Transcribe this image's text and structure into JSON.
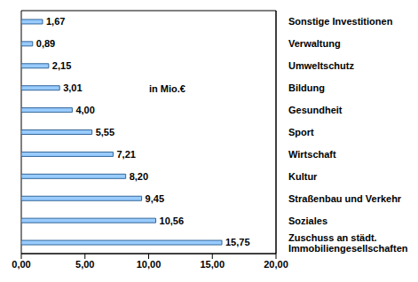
{
  "chart_data": {
    "type": "bar",
    "orientation": "horizontal",
    "annotation": "in Mio.€",
    "categories": [
      "Sonstige Investitionen",
      "Verwaltung",
      "Umweltschutz",
      "Bildung",
      "Gesundheit",
      "Sport",
      "Wirtschaft",
      "Kultur",
      "Straßenbau und Verkehr",
      "Soziales",
      "Zuschuss an städt. Immobiliengesellschaften"
    ],
    "values": [
      1.67,
      0.89,
      2.15,
      3.01,
      4.0,
      5.55,
      7.21,
      8.2,
      9.45,
      10.56,
      15.75
    ],
    "value_labels": [
      "1,67",
      "0,89",
      "2,15",
      "3,01",
      "4,00",
      "5,55",
      "7,21",
      "8,20",
      "9,45",
      "10,56",
      "15,75"
    ],
    "data_labels": true,
    "color": "#99ccff",
    "xlim": [
      0,
      20
    ],
    "xticks": [
      {
        "value": 0,
        "label": "0,00"
      },
      {
        "value": 5,
        "label": "5,00"
      },
      {
        "value": 10,
        "label": "10,00"
      },
      {
        "value": 15,
        "label": "15,00"
      },
      {
        "value": 20,
        "label": "20,00"
      }
    ],
    "grid": false
  }
}
